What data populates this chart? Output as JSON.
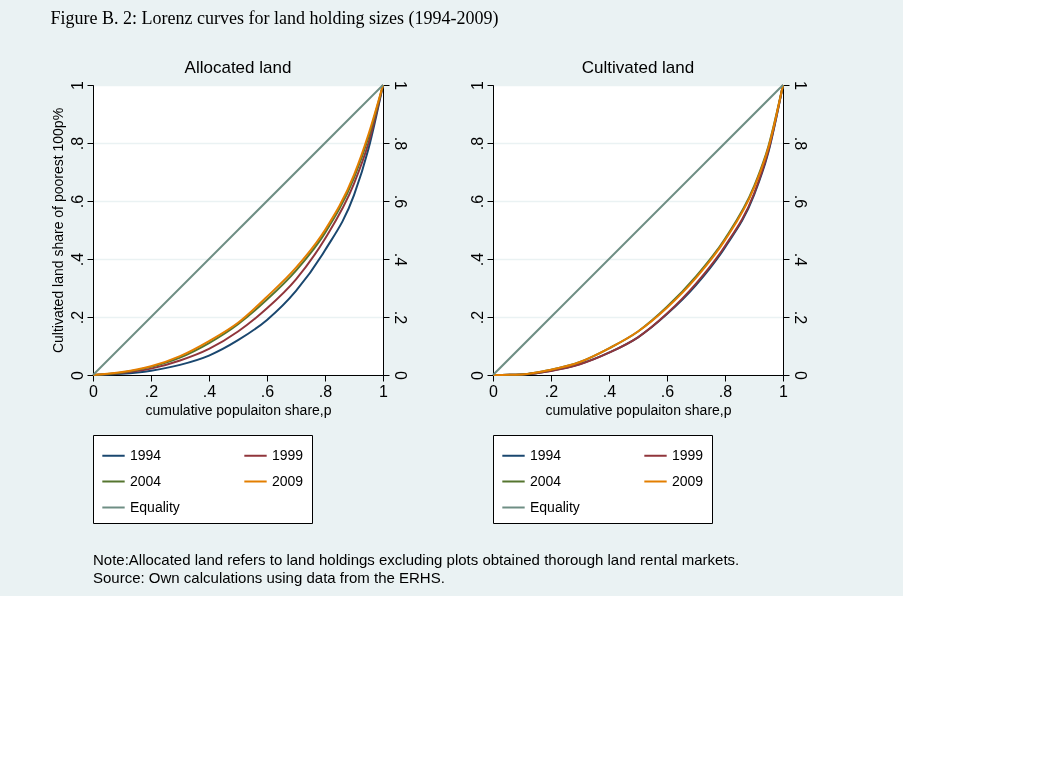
{
  "chart_data": [
    {
      "type": "line",
      "title": "Allocated land",
      "xlabel": "cumulative populaiton share,p",
      "ylabel": "Cultivated land share of poorest 100p%",
      "annotations": [
        "Figure B. 2: Lorenz curves for land holding sizes (1994-2009)",
        "Note:Allocated land refers to land holdings excluding plots obtained thorough land rental markets.",
        " Source: Own calculations using data from the ERHS."
      ],
      "series": [
        {
          "name": "1994",
          "color": "#1a476f",
          "x": [
            0,
            0.1,
            0.2,
            0.3,
            0.4,
            0.5,
            0.6,
            0.7,
            0.8,
            0.9,
            0.95,
            1
          ],
          "values": [
            0,
            0.004,
            0.015,
            0.035,
            0.067,
            0.12,
            0.19,
            0.29,
            0.43,
            0.62,
            0.78,
            1
          ]
        },
        {
          "name": "1999",
          "color": "#90353b",
          "x": [
            0,
            0.1,
            0.2,
            0.3,
            0.4,
            0.5,
            0.6,
            0.7,
            0.8,
            0.9,
            0.95,
            1
          ],
          "values": [
            0,
            0.007,
            0.022,
            0.05,
            0.09,
            0.15,
            0.23,
            0.33,
            0.47,
            0.66,
            0.8,
            1
          ]
        },
        {
          "name": "2004",
          "color": "#55752f",
          "x": [
            0,
            0.1,
            0.2,
            0.3,
            0.4,
            0.5,
            0.6,
            0.7,
            0.8,
            0.9,
            0.95,
            1
          ],
          "values": [
            0,
            0.009,
            0.028,
            0.06,
            0.11,
            0.175,
            0.26,
            0.36,
            0.49,
            0.68,
            0.82,
            1
          ]
        },
        {
          "name": "2009",
          "color": "#e37e00",
          "x": [
            0,
            0.1,
            0.2,
            0.3,
            0.4,
            0.5,
            0.6,
            0.7,
            0.8,
            0.9,
            0.95,
            1
          ],
          "values": [
            0,
            0.01,
            0.03,
            0.065,
            0.117,
            0.18,
            0.27,
            0.37,
            0.5,
            0.69,
            0.83,
            1
          ]
        },
        {
          "name": "Equality",
          "color": "#6e8e84",
          "x": [
            0,
            1
          ],
          "values": [
            0,
            1
          ]
        }
      ],
      "xlim": [
        0,
        1
      ],
      "ylim": [
        0,
        1
      ],
      "xticks": [
        {
          "value": 0,
          "label": "0"
        },
        {
          "value": 0.2,
          "label": ".2"
        },
        {
          "value": 0.4,
          "label": ".4"
        },
        {
          "value": 0.6,
          "label": ".6"
        },
        {
          "value": 0.8,
          "label": ".8"
        },
        {
          "value": 1,
          "label": "1"
        }
      ],
      "yticks": [
        {
          "value": 0,
          "label": "0"
        },
        {
          "value": 0.2,
          "label": ".2"
        },
        {
          "value": 0.4,
          "label": ".4"
        },
        {
          "value": 0.6,
          "label": ".6"
        },
        {
          "value": 0.8,
          "label": ".8"
        },
        {
          "value": 1,
          "label": "1"
        }
      ],
      "y2lim": [
        0,
        1
      ],
      "y2ticks": [
        {
          "value": 0,
          "label": "0"
        },
        {
          "value": 0.2,
          "label": ".2"
        },
        {
          "value": 0.4,
          "label": ".4"
        },
        {
          "value": 0.6,
          "label": ".6"
        },
        {
          "value": 0.8,
          "label": ".8"
        },
        {
          "value": 1,
          "label": "1"
        }
      ],
      "grid": "y",
      "legend": "bottom"
    },
    {
      "type": "line",
      "title": "Cultivated land",
      "xlabel": "cumulative populaiton share,p",
      "series": [
        {
          "name": "1994",
          "color": "#1a476f",
          "x": [
            0,
            0.1,
            0.2,
            0.3,
            0.4,
            0.5,
            0.6,
            0.7,
            0.8,
            0.9,
            0.95,
            1
          ],
          "values": [
            0,
            0.002,
            0.015,
            0.038,
            0.077,
            0.13,
            0.21,
            0.31,
            0.44,
            0.62,
            0.77,
            1
          ]
        },
        {
          "name": "1999",
          "color": "#90353b",
          "x": [
            0,
            0.1,
            0.2,
            0.3,
            0.4,
            0.5,
            0.6,
            0.7,
            0.8,
            0.9,
            0.95,
            1
          ],
          "values": [
            0,
            0.002,
            0.014,
            0.037,
            0.077,
            0.13,
            0.212,
            0.315,
            0.445,
            0.625,
            0.775,
            1
          ]
        },
        {
          "name": "2004",
          "color": "#55752f",
          "x": [
            0,
            0.1,
            0.2,
            0.3,
            0.4,
            0.5,
            0.6,
            0.7,
            0.8,
            0.9,
            0.95,
            1
          ],
          "values": [
            0,
            0.002,
            0.018,
            0.045,
            0.092,
            0.15,
            0.235,
            0.34,
            0.47,
            0.65,
            0.79,
            1
          ]
        },
        {
          "name": "2009",
          "color": "#e37e00",
          "x": [
            0,
            0.1,
            0.2,
            0.3,
            0.4,
            0.5,
            0.6,
            0.7,
            0.8,
            0.9,
            0.95,
            1
          ],
          "values": [
            0,
            0.002,
            0.018,
            0.045,
            0.092,
            0.15,
            0.232,
            0.335,
            0.465,
            0.645,
            0.785,
            1
          ]
        },
        {
          "name": "Equality",
          "color": "#6e8e84",
          "x": [
            0,
            1
          ],
          "values": [
            0,
            1
          ]
        }
      ],
      "xlim": [
        0,
        1
      ],
      "ylim": [
        0,
        1
      ],
      "xticks": [
        {
          "value": 0,
          "label": "0"
        },
        {
          "value": 0.2,
          "label": ".2"
        },
        {
          "value": 0.4,
          "label": ".4"
        },
        {
          "value": 0.6,
          "label": ".6"
        },
        {
          "value": 0.8,
          "label": ".8"
        },
        {
          "value": 1,
          "label": "1"
        }
      ],
      "yticks": [
        {
          "value": 0,
          "label": "0"
        },
        {
          "value": 0.2,
          "label": ".2"
        },
        {
          "value": 0.4,
          "label": ".4"
        },
        {
          "value": 0.6,
          "label": ".6"
        },
        {
          "value": 0.8,
          "label": ".8"
        },
        {
          "value": 1,
          "label": "1"
        }
      ],
      "y2lim": [
        0,
        1
      ],
      "y2ticks": [
        {
          "value": 0,
          "label": "0"
        },
        {
          "value": 0.2,
          "label": ".2"
        },
        {
          "value": 0.4,
          "label": ".4"
        },
        {
          "value": 0.6,
          "label": ".6"
        },
        {
          "value": 0.8,
          "label": ".8"
        },
        {
          "value": 1,
          "label": "1"
        }
      ],
      "grid": "y",
      "legend": "bottom"
    }
  ]
}
